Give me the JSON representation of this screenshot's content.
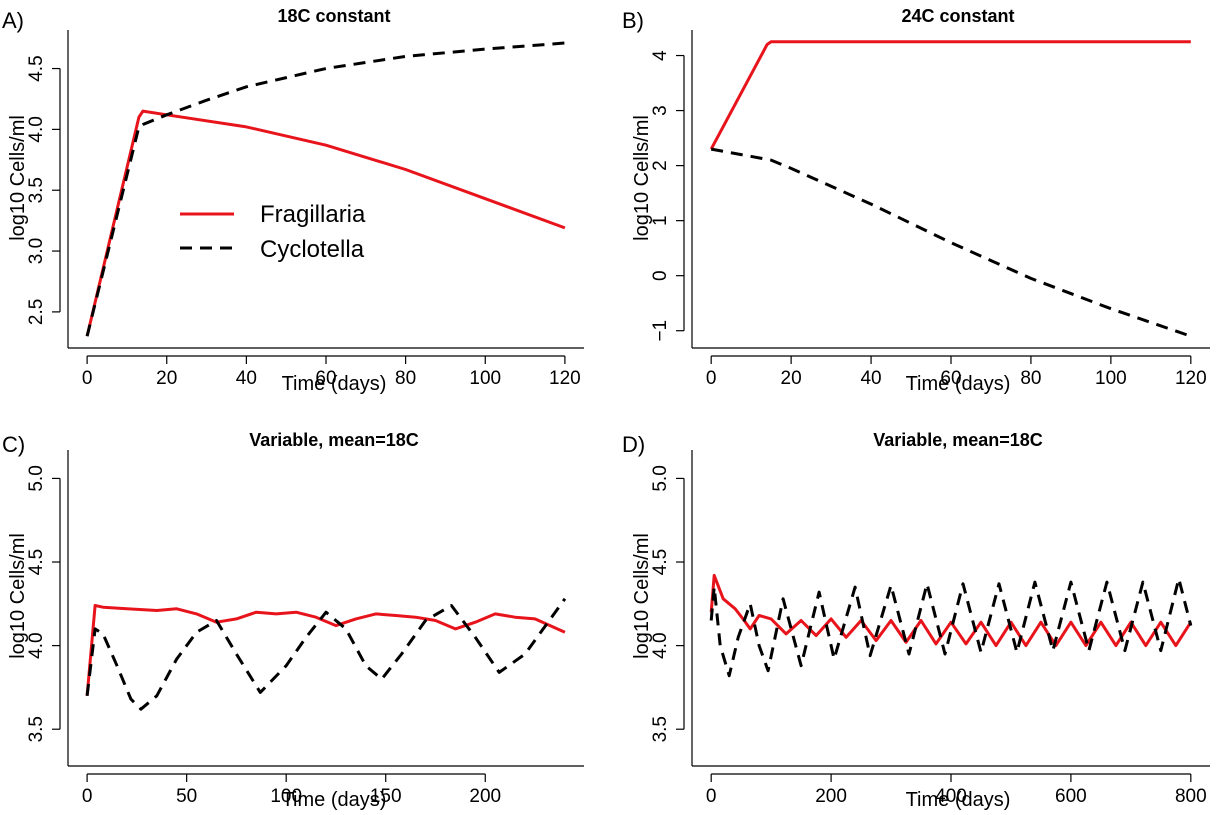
{
  "colors": {
    "fragillaria": "#e8141c",
    "cyclotella": "#000000",
    "axis": "#000000"
  },
  "legend": {
    "placement": "center-left of panel A",
    "entries": [
      {
        "label": "Fragillaria",
        "style": "solid",
        "color": "#e8141c"
      },
      {
        "label": "Cyclotella",
        "style": "dashed",
        "color": "#000000"
      }
    ]
  },
  "chart_data": [
    {
      "type": "line",
      "tag": "A)",
      "title": "18C constant",
      "xlabel": "Time (days)",
      "ylabel": "log10 Cells/ml",
      "xlim": [
        0,
        120
      ],
      "ylim": [
        2.3,
        4.72
      ],
      "xticks": [
        0,
        20,
        40,
        60,
        80,
        100,
        120
      ],
      "yticks": [
        2.5,
        3.0,
        3.5,
        4.0,
        4.5
      ],
      "ytick_labels": [
        "2.5",
        "3.0",
        "3.5",
        "4.0",
        "4.5"
      ],
      "grid": false,
      "series": [
        {
          "name": "Fragillaria",
          "style": "solid",
          "color": "#e8141c",
          "x": [
            0,
            13,
            14,
            20,
            40,
            60,
            80,
            100,
            120
          ],
          "y": [
            2.3,
            4.1,
            4.15,
            4.12,
            4.02,
            3.87,
            3.67,
            3.43,
            3.19
          ]
        },
        {
          "name": "Cyclotella",
          "style": "dashed",
          "color": "#000000",
          "x": [
            0,
            13,
            14,
            20,
            30,
            40,
            60,
            80,
            100,
            120
          ],
          "y": [
            2.3,
            4.02,
            4.04,
            4.12,
            4.24,
            4.35,
            4.5,
            4.6,
            4.66,
            4.71
          ]
        }
      ]
    },
    {
      "type": "line",
      "tag": "B)",
      "title": "24C constant",
      "xlabel": "Time (days)",
      "ylabel": "log10 Cells/ml",
      "xlim": [
        0,
        120
      ],
      "ylim": [
        -1.1,
        4.25
      ],
      "xticks": [
        0,
        20,
        40,
        60,
        80,
        100,
        120
      ],
      "yticks": [
        -1,
        0,
        1,
        2,
        3,
        4
      ],
      "ytick_labels": [
        "−1",
        "0",
        "1",
        "2",
        "3",
        "4"
      ],
      "grid": false,
      "series": [
        {
          "name": "Fragillaria",
          "style": "solid",
          "color": "#e8141c",
          "x": [
            0,
            14,
            15,
            120
          ],
          "y": [
            2.3,
            4.2,
            4.25,
            4.25
          ]
        },
        {
          "name": "Cyclotella",
          "style": "dashed",
          "color": "#000000",
          "x": [
            0,
            15,
            20,
            40,
            60,
            80,
            100,
            120
          ],
          "y": [
            2.3,
            2.1,
            1.95,
            1.3,
            0.6,
            -0.05,
            -0.6,
            -1.1
          ]
        }
      ]
    },
    {
      "type": "line",
      "tag": "C)",
      "title": "Variable, mean=18C",
      "xlabel": "Time (days)",
      "ylabel": "log10 Cells/ml",
      "xlim": [
        0,
        240
      ],
      "ylim": [
        3.35,
        5.1
      ],
      "xticks": [
        0,
        50,
        100,
        150,
        200
      ],
      "yticks": [
        3.5,
        4.0,
        4.5,
        5.0
      ],
      "ytick_labels": [
        "3.5",
        "4.0",
        "4.5",
        "5.0"
      ],
      "grid": false,
      "series": [
        {
          "name": "Fragillaria",
          "style": "solid",
          "color": "#e8141c",
          "x": [
            0,
            4,
            8,
            20,
            35,
            45,
            55,
            65,
            75,
            85,
            95,
            105,
            115,
            125,
            135,
            145,
            155,
            165,
            175,
            185,
            195,
            205,
            215,
            225,
            240
          ],
          "y": [
            3.7,
            4.24,
            4.23,
            4.22,
            4.21,
            4.22,
            4.19,
            4.14,
            4.16,
            4.2,
            4.19,
            4.2,
            4.17,
            4.12,
            4.16,
            4.19,
            4.18,
            4.17,
            4.15,
            4.1,
            4.14,
            4.19,
            4.17,
            4.16,
            4.08
          ]
        },
        {
          "name": "Cyclotella",
          "style": "dashed",
          "color": "#000000",
          "x": [
            0,
            4,
            8,
            15,
            22,
            27,
            35,
            45,
            55,
            65,
            75,
            87,
            100,
            110,
            120,
            130,
            140,
            148,
            158,
            170,
            183,
            195,
            207,
            220,
            240
          ],
          "y": [
            3.7,
            4.1,
            4.07,
            3.88,
            3.68,
            3.62,
            3.7,
            3.92,
            4.08,
            4.15,
            3.95,
            3.72,
            3.88,
            4.05,
            4.2,
            4.1,
            3.88,
            3.8,
            3.95,
            4.15,
            4.24,
            4.05,
            3.84,
            3.95,
            4.28
          ]
        }
      ]
    },
    {
      "type": "line",
      "tag": "D)",
      "title": "Variable, mean=18C",
      "xlabel": "Time (days)",
      "ylabel": "log10 Cells/ml",
      "xlim": [
        0,
        800
      ],
      "ylim": [
        3.35,
        5.1
      ],
      "xticks": [
        0,
        200,
        400,
        600,
        800
      ],
      "yticks": [
        3.5,
        4.0,
        4.5,
        5.0
      ],
      "ytick_labels": [
        "3.5",
        "4.0",
        "4.5",
        "5.0"
      ],
      "grid": false,
      "series": [
        {
          "name": "Fragillaria",
          "style": "solid",
          "color": "#e8141c",
          "x": [
            0,
            5,
            20,
            40,
            55,
            65,
            80,
            100,
            125,
            150,
            175,
            200,
            225,
            250,
            275,
            300,
            325,
            350,
            375,
            400,
            425,
            450,
            475,
            500,
            525,
            550,
            575,
            600,
            625,
            650,
            675,
            700,
            725,
            750,
            775,
            800
          ],
          "y": [
            4.2,
            4.42,
            4.28,
            4.22,
            4.15,
            4.1,
            4.18,
            4.16,
            4.07,
            4.15,
            4.06,
            4.16,
            4.05,
            4.15,
            4.03,
            4.15,
            4.02,
            4.15,
            4.01,
            4.14,
            4.01,
            4.14,
            4.0,
            4.14,
            4.0,
            4.14,
            4.0,
            4.14,
            4.0,
            4.14,
            4.0,
            4.14,
            4.0,
            4.14,
            4.0,
            4.14
          ]
        },
        {
          "name": "Cyclotella",
          "style": "dashed",
          "color": "#000000",
          "x": [
            0,
            5,
            15,
            30,
            45,
            65,
            80,
            95,
            120,
            150,
            180,
            205,
            240,
            265,
            300,
            330,
            360,
            390,
            420,
            450,
            480,
            510,
            540,
            570,
            600,
            630,
            660,
            690,
            720,
            750,
            780,
            800
          ],
          "y": [
            4.15,
            4.35,
            4.0,
            3.82,
            4.05,
            4.25,
            4.0,
            3.85,
            4.28,
            3.88,
            4.32,
            3.92,
            4.35,
            3.94,
            4.36,
            3.95,
            4.37,
            3.95,
            4.37,
            3.96,
            4.37,
            3.96,
            4.38,
            3.97,
            4.38,
            3.97,
            4.38,
            3.97,
            4.38,
            3.97,
            4.4,
            4.12
          ]
        }
      ]
    }
  ]
}
